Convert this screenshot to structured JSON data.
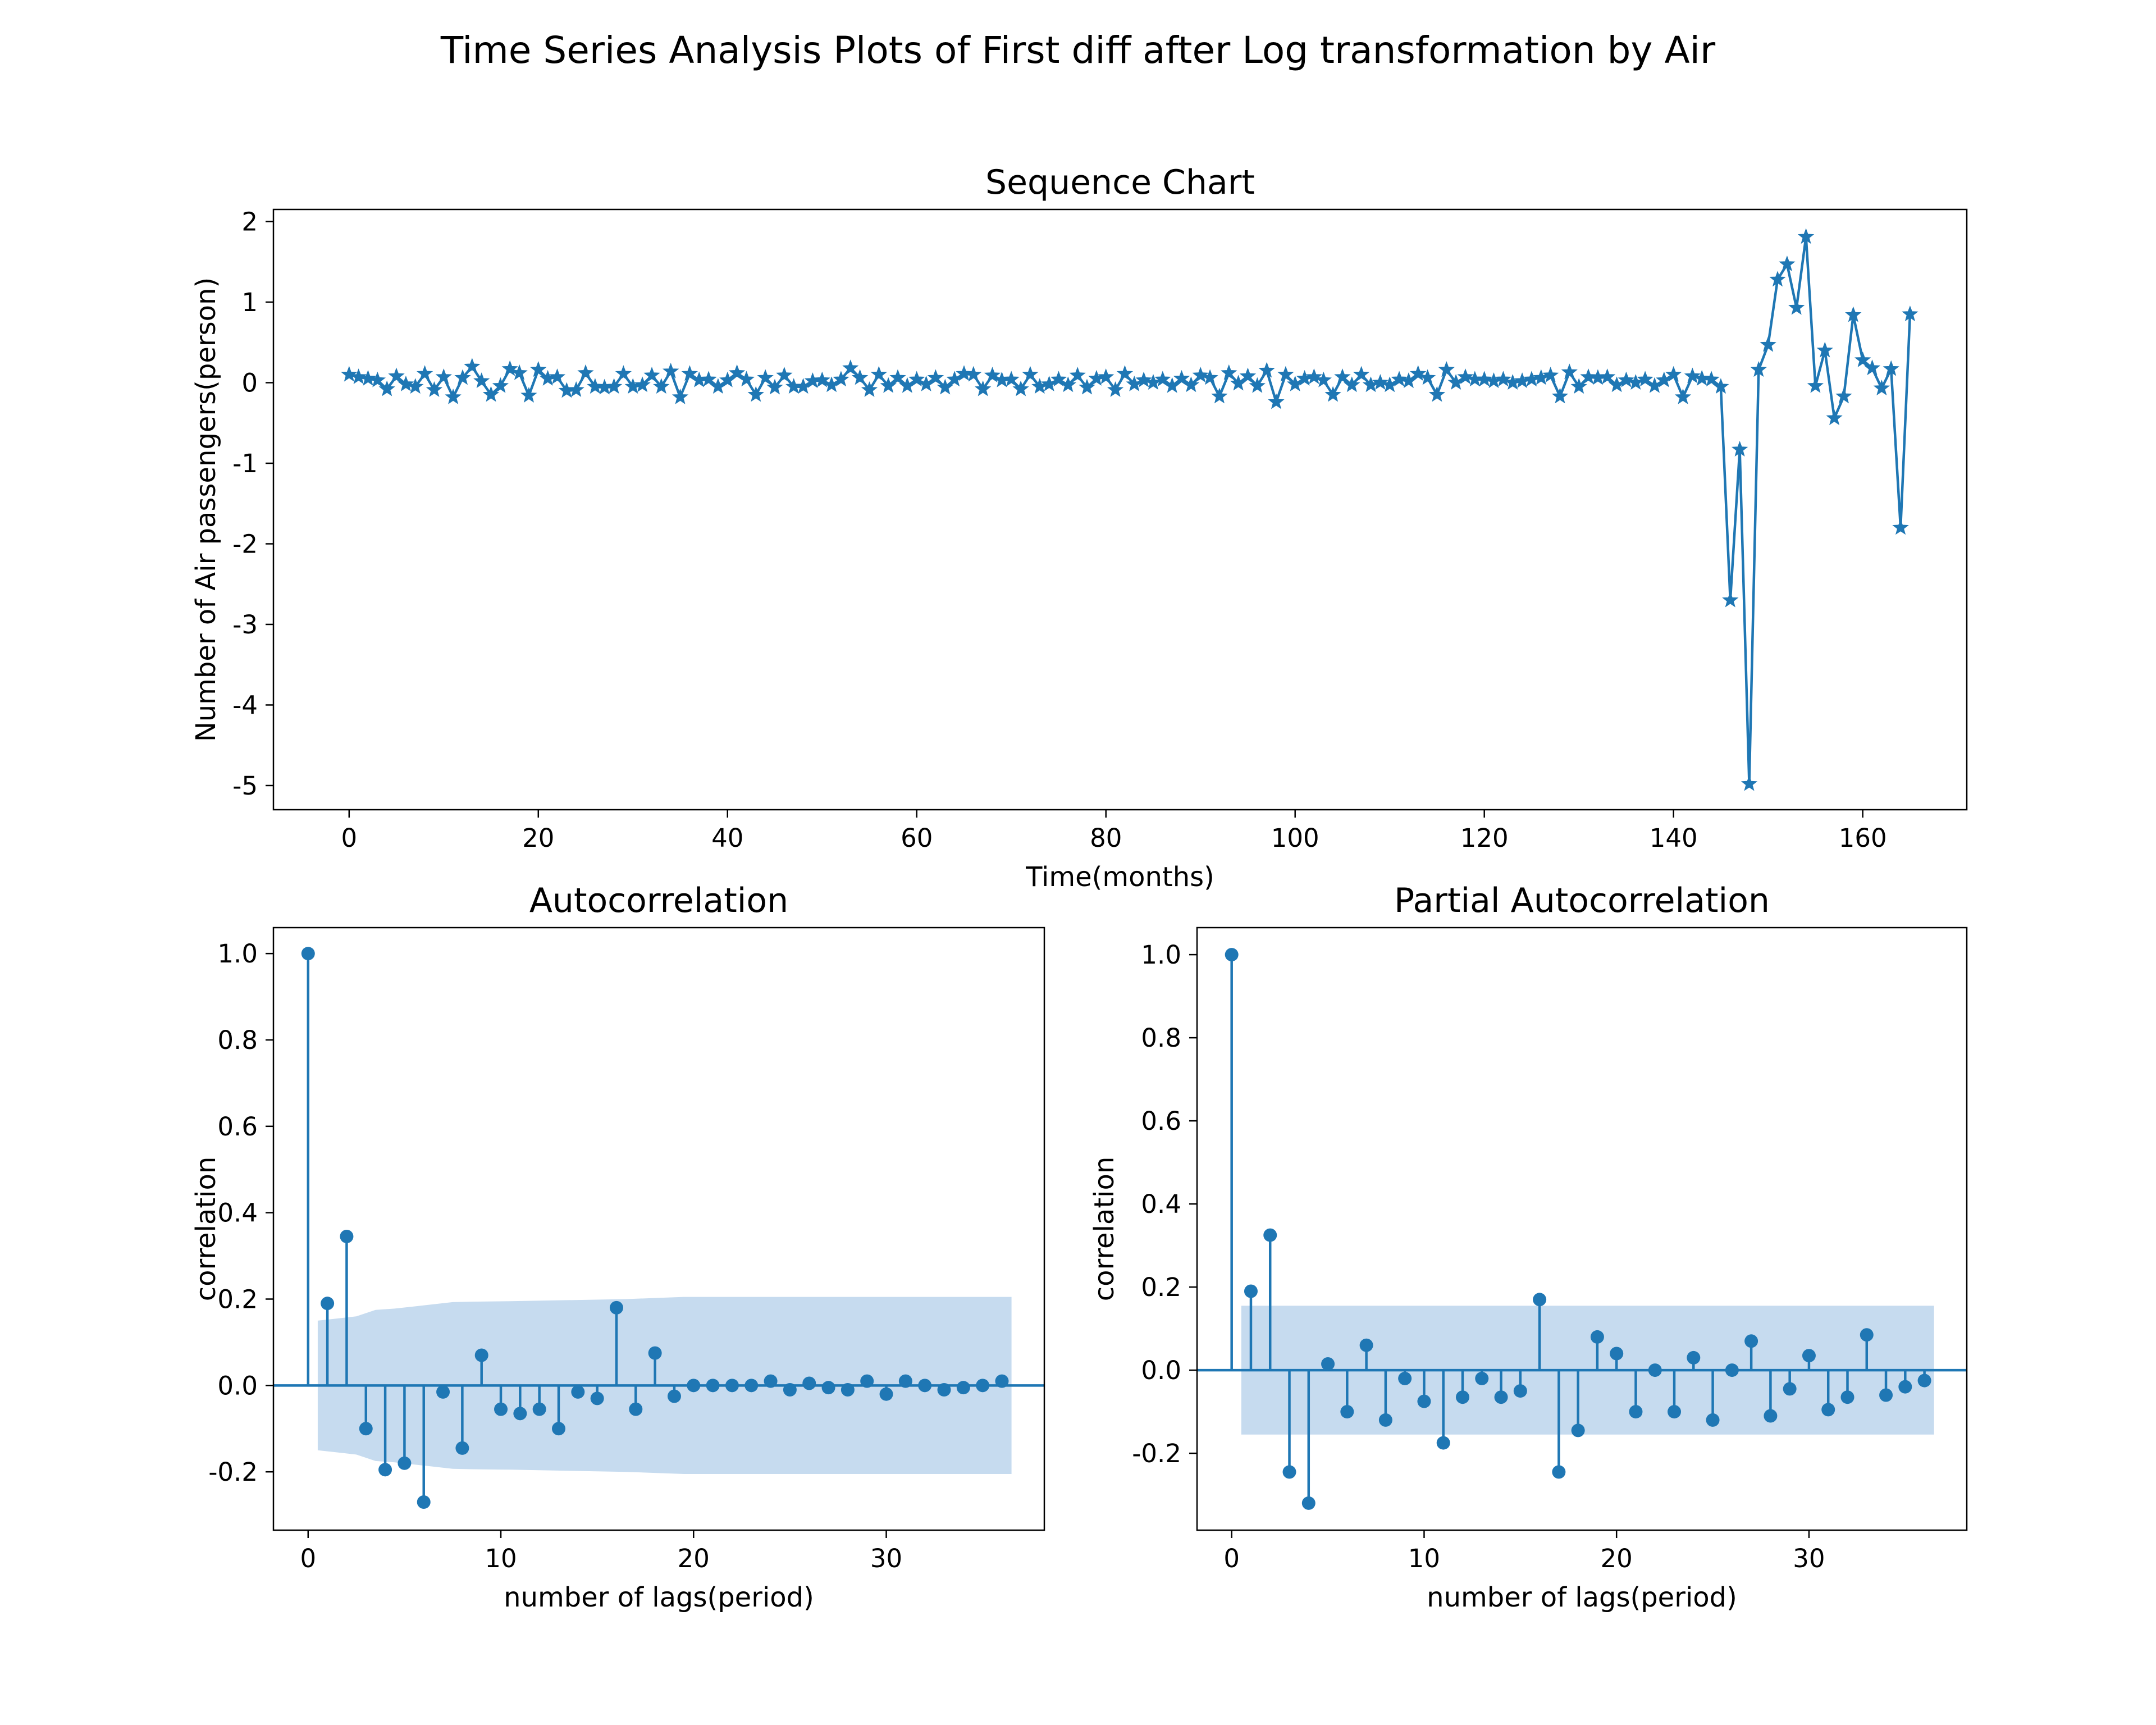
{
  "figure": {
    "title": "Time Series Analysis Plots of First diff after Log transformation by Air"
  },
  "colors": {
    "line": "#1f77b4",
    "confidence_band": "#c6dbef",
    "frame": "#000000"
  },
  "chart_data": [
    {
      "type": "line",
      "title": "Sequence Chart",
      "xlabel": "Time(months)",
      "ylabel": "Number of Air passengers(person)",
      "marker": "star",
      "xlim": [
        -8,
        171
      ],
      "ylim": [
        -5.3,
        2.15
      ],
      "xticks": [
        0,
        20,
        40,
        60,
        80,
        100,
        120,
        140,
        160
      ],
      "xtick_labels": [
        "0",
        "20",
        "40",
        "60",
        "80",
        "100",
        "120",
        "140",
        "160"
      ],
      "yticks": [
        2,
        1,
        0,
        -1,
        -2,
        -3,
        -4,
        -5
      ],
      "ytick_labels": [
        "2",
        "1",
        "0",
        "-1",
        "-2",
        "-3",
        "-4",
        "-5"
      ],
      "y": [
        0.1,
        0.07,
        0.05,
        0.03,
        -0.08,
        0.08,
        -0.02,
        -0.05,
        0.11,
        -0.09,
        0.07,
        -0.18,
        0.06,
        0.2,
        0.02,
        -0.15,
        -0.04,
        0.17,
        0.12,
        -0.16,
        0.16,
        0.05,
        0.07,
        -0.1,
        -0.09,
        0.12,
        -0.05,
        -0.06,
        -0.05,
        0.11,
        -0.05,
        -0.03,
        0.09,
        -0.05,
        0.14,
        -0.18,
        0.11,
        0.03,
        0.04,
        -0.05,
        0.03,
        0.12,
        0.04,
        -0.15,
        0.06,
        -0.06,
        0.09,
        -0.05,
        -0.05,
        0.02,
        0.03,
        -0.03,
        0.04,
        0.18,
        0.06,
        -0.09,
        0.1,
        -0.04,
        0.06,
        -0.04,
        0.04,
        -0.02,
        0.06,
        -0.06,
        0.04,
        0.11,
        0.1,
        -0.08,
        0.09,
        0.03,
        0.04,
        -0.08,
        0.1,
        -0.05,
        -0.02,
        0.04,
        -0.03,
        0.09,
        -0.06,
        0.05,
        0.07,
        -0.09,
        0.11,
        -0.02,
        0.03,
        0.0,
        0.04,
        -0.04,
        0.05,
        -0.03,
        0.09,
        0.06,
        -0.17,
        0.12,
        -0.01,
        0.08,
        -0.04,
        0.15,
        -0.24,
        0.1,
        -0.02,
        0.05,
        0.07,
        0.03,
        -0.15,
        0.07,
        -0.03,
        0.1,
        -0.03,
        0.0,
        -0.03,
        0.04,
        0.02,
        0.11,
        0.06,
        -0.15,
        0.16,
        0.0,
        0.07,
        0.04,
        0.04,
        0.02,
        0.04,
        0.0,
        0.02,
        0.04,
        0.06,
        0.09,
        -0.17,
        0.13,
        -0.05,
        0.07,
        0.06,
        0.07,
        -0.03,
        0.03,
        0.0,
        0.04,
        -0.04,
        0.03,
        0.1,
        -0.18,
        0.08,
        0.05,
        0.04,
        -0.05,
        -2.7,
        -0.83,
        -4.98,
        0.16,
        0.47,
        1.28,
        1.47,
        0.93,
        1.81,
        -0.04,
        0.4,
        -0.44,
        -0.17,
        0.84,
        0.28,
        0.18,
        -0.07,
        0.17,
        -1.8,
        0.85
      ]
    },
    {
      "type": "stem",
      "title": "Autocorrelation",
      "xlabel": "number of lags(period)",
      "ylabel": "correlation",
      "xlim": [
        -1.8,
        38.2
      ],
      "ylim": [
        -0.335,
        1.06
      ],
      "xticks": [
        0,
        10,
        20,
        30
      ],
      "xtick_labels": [
        "0",
        "10",
        "20",
        "30"
      ],
      "yticks": [
        1.0,
        0.8,
        0.6,
        0.4,
        0.2,
        0.0,
        -0.2
      ],
      "ytick_labels": [
        "1.0",
        "0.8",
        "0.6",
        "0.4",
        "0.2",
        "0.0",
        "-0.2"
      ],
      "lags": [
        0,
        1,
        2,
        3,
        4,
        5,
        6,
        7,
        8,
        9,
        10,
        11,
        12,
        13,
        14,
        15,
        16,
        17,
        18,
        19,
        20,
        21,
        22,
        23,
        24,
        25,
        26,
        27,
        28,
        29,
        30,
        31,
        32,
        33,
        34,
        35,
        36
      ],
      "values": [
        1.0,
        0.19,
        0.345,
        -0.1,
        -0.195,
        -0.18,
        -0.27,
        -0.015,
        -0.145,
        0.07,
        -0.055,
        -0.065,
        -0.055,
        -0.1,
        -0.015,
        -0.03,
        0.18,
        -0.055,
        0.075,
        -0.025,
        0.0,
        0.0,
        0.0,
        0.0,
        0.01,
        -0.01,
        0.005,
        -0.005,
        -0.01,
        0.01,
        -0.02,
        0.01,
        0.0,
        -0.01,
        -0.005,
        0.0,
        0.01
      ],
      "confidence_band": {
        "lags": [
          0.5,
          1.5,
          2.5,
          3.5,
          4.5,
          5.5,
          6.5,
          7.5,
          8.5,
          10.5,
          16.5,
          19.5,
          36.5
        ],
        "upper": [
          0.15,
          0.155,
          0.16,
          0.175,
          0.178,
          0.183,
          0.188,
          0.193,
          0.194,
          0.195,
          0.2,
          0.205,
          0.205
        ]
      }
    },
    {
      "type": "stem",
      "title": "Partial Autocorrelation",
      "xlabel": "number of lags(period)",
      "ylabel": "correlation",
      "xlim": [
        -1.8,
        38.2
      ],
      "ylim": [
        -0.385,
        1.065
      ],
      "xticks": [
        0,
        10,
        20,
        30
      ],
      "xtick_labels": [
        "0",
        "10",
        "20",
        "30"
      ],
      "yticks": [
        1.0,
        0.8,
        0.6,
        0.4,
        0.2,
        0.0,
        -0.2
      ],
      "ytick_labels": [
        "1.0",
        "0.8",
        "0.6",
        "0.4",
        "0.2",
        "0.0",
        "-0.2"
      ],
      "lags": [
        0,
        1,
        2,
        3,
        4,
        5,
        6,
        7,
        8,
        9,
        10,
        11,
        12,
        13,
        14,
        15,
        16,
        17,
        18,
        19,
        20,
        21,
        22,
        23,
        24,
        25,
        26,
        27,
        28,
        29,
        30,
        31,
        32,
        33,
        34,
        35,
        36
      ],
      "values": [
        1.0,
        0.19,
        0.325,
        -0.245,
        -0.32,
        0.015,
        -0.1,
        0.06,
        -0.12,
        -0.02,
        -0.075,
        -0.175,
        -0.065,
        -0.02,
        -0.065,
        -0.05,
        0.17,
        -0.245,
        -0.145,
        0.08,
        0.04,
        -0.1,
        0.0,
        -0.1,
        0.03,
        -0.12,
        0.0,
        0.07,
        -0.11,
        -0.045,
        0.035,
        -0.095,
        -0.065,
        0.085,
        -0.06,
        -0.04,
        -0.025
      ],
      "confidence_band": {
        "lags": [
          0.5,
          36.5
        ],
        "upper": [
          0.155,
          0.155
        ]
      }
    }
  ]
}
